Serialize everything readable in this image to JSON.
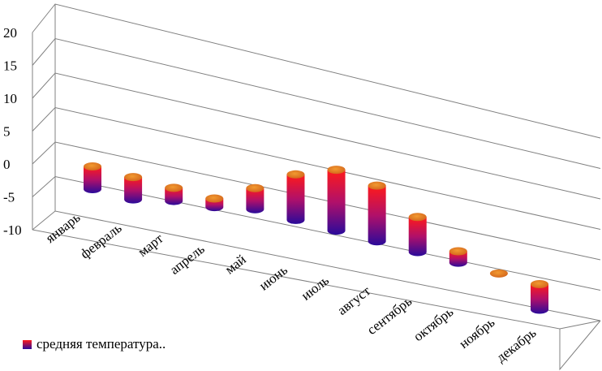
{
  "chart_data": {
    "type": "bar",
    "style": "3d-cylinder",
    "categories": [
      "январь",
      "февраль",
      "март",
      "апрель",
      "май",
      "июнь",
      "июль",
      "август",
      "сентябрь",
      "октябрь",
      "ноябрь",
      "декабрь"
    ],
    "series": [
      {
        "name": "средняя температура..",
        "values": [
          -5,
          -5,
          -3,
          -2,
          5,
          11,
          15,
          14,
          9,
          3,
          0,
          -7
        ]
      }
    ],
    "yticks": [
      20,
      15,
      10,
      5,
      0,
      -5,
      -10
    ],
    "ylim": [
      -10,
      20
    ],
    "grid": true,
    "legend_position": "bottom-left",
    "colors": {
      "top": "#ff1a1a",
      "bottom": "#2a0a9a",
      "cap": "#e07a1a",
      "grid": "#808080"
    }
  },
  "legend": {
    "label": "средняя температура.."
  }
}
